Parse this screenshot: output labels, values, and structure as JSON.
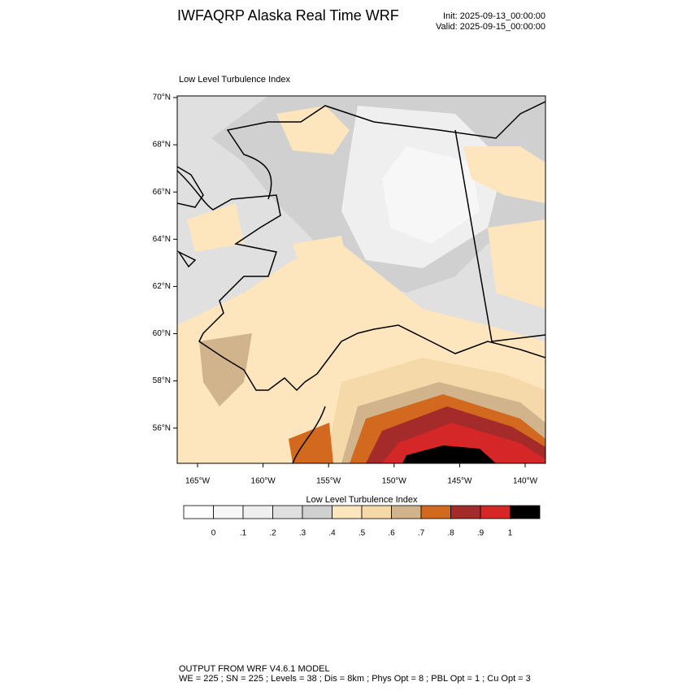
{
  "header": {
    "title": "IWFAQRP Alaska Real Time WRF",
    "init": "Init: 2025-09-13_00:00:00",
    "valid": "Valid: 2025-09-15_00:00:00"
  },
  "map": {
    "subtitle": "Low Level Turbulence Index",
    "lat_labels": [
      "70°N",
      "68°N",
      "66°N",
      "64°N",
      "62°N",
      "60°N",
      "58°N",
      "56°N"
    ],
    "lon_labels": [
      "165°W",
      "160°W",
      "155°W",
      "150°W",
      "145°W",
      "140°W"
    ]
  },
  "colorbar": {
    "title": "Low Level Turbulence Index",
    "labels": [
      "0",
      ".1",
      ".2",
      ".3",
      ".4",
      ".5",
      ".6",
      ".7",
      ".8",
      ".9",
      "1"
    ],
    "colors": [
      "#ffffff",
      "#f7f7f7",
      "#efefef",
      "#e0e0e0",
      "#d0d0d0",
      "#fde5bd",
      "#f5d9a8",
      "#d2b48c",
      "#d2691e",
      "#a52a2a",
      "#d62728",
      "#000000"
    ]
  },
  "footer": {
    "line1": "OUTPUT FROM WRF V4.6.1 MODEL",
    "line2": "WE = 225 ; SN = 225 ; Levels = 38 ; Dis = 8km ; Phys Opt = 8 ; PBL Opt = 1 ; Cu Opt = 3"
  }
}
